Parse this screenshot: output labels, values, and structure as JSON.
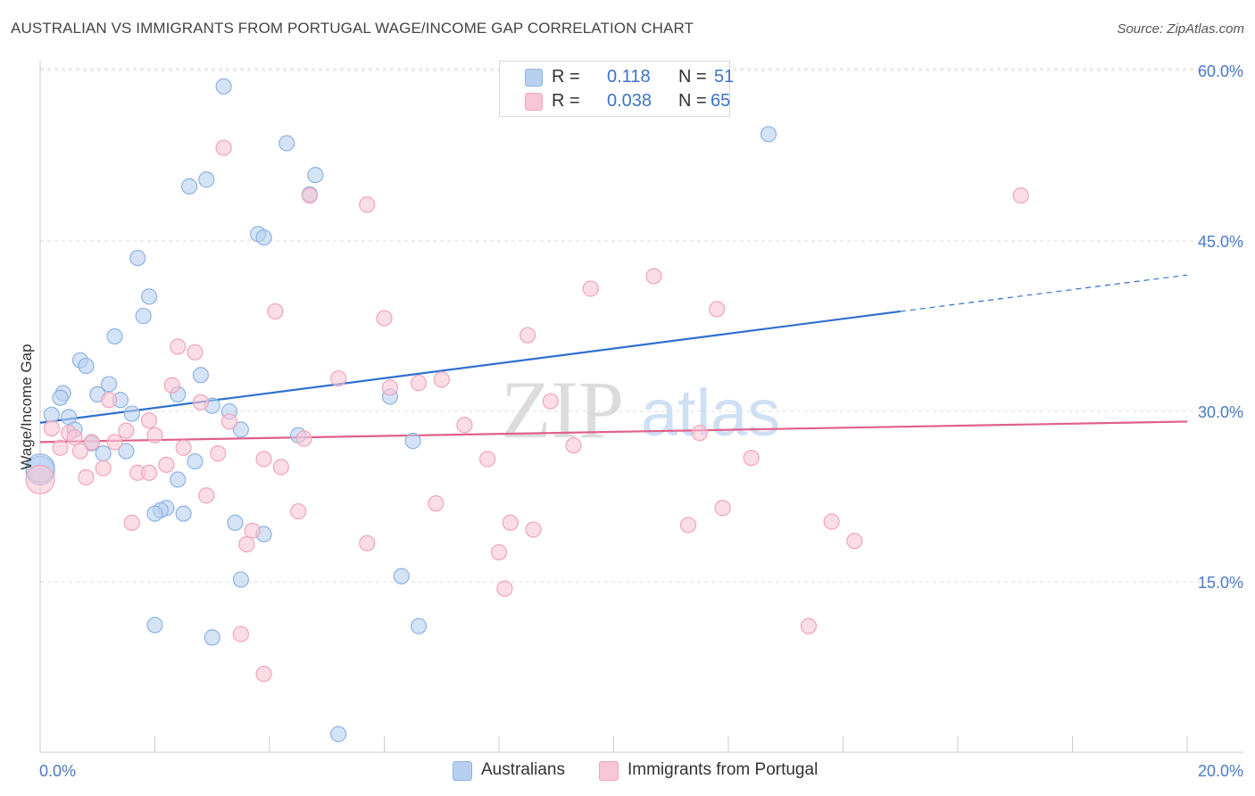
{
  "title": "AUSTRALIAN VS IMMIGRANTS FROM PORTUGAL WAGE/INCOME GAP CORRELATION CHART",
  "source": "Source: ZipAtlas.com",
  "watermark": {
    "zip": "ZIP",
    "atlas": "atlas"
  },
  "legend": {
    "r_label": "R =",
    "n_label": "N =",
    "rows": [
      {
        "r": "0.118",
        "n": "51"
      },
      {
        "r": "0.038",
        "n": "65"
      }
    ]
  },
  "bottom_legend": [
    "Australians",
    "Immigrants from Portugal"
  ],
  "colors": {
    "blue_fill": "#b8d0f0",
    "blue_stroke": "#8fb2e3",
    "blue_line": "#2f6fd0",
    "pink_fill": "#f8c6d6",
    "pink_stroke": "#f0a4bd",
    "pink_line": "#e0608a",
    "tick_text": "#4a7ac7",
    "grid": "#dddddd"
  },
  "chart_data": {
    "type": "scatter",
    "title": "AUSTRALIAN VS IMMIGRANTS FROM PORTUGAL WAGE/INCOME GAP CORRELATION CHART",
    "xlabel": "",
    "ylabel": "Wage/Income Gap",
    "xlim": [
      0,
      20
    ],
    "ylim": [
      0,
      62
    ],
    "x_tick_labels": [
      "0.0%",
      "20.0%"
    ],
    "y_ticks": [
      15,
      30,
      45,
      60
    ],
    "y_tick_labels": [
      "15.0%",
      "30.0%",
      "45.0%",
      "60.0%"
    ],
    "grid": true,
    "legend_position": "top-center",
    "series": [
      {
        "name": "Australians",
        "r": 0.118,
        "n": 51,
        "trend": {
          "x0": 0,
          "y0": 29.0,
          "x1": 15.0,
          "y1": 38.8,
          "dashed_to_x": 20,
          "dashed_to_y": 42.0
        },
        "points": [
          {
            "x": 3.2,
            "y": 58.6
          },
          {
            "x": 12.7,
            "y": 54.4
          },
          {
            "x": 4.3,
            "y": 53.6
          },
          {
            "x": 4.8,
            "y": 50.8
          },
          {
            "x": 2.9,
            "y": 50.4
          },
          {
            "x": 2.6,
            "y": 49.8
          },
          {
            "x": 4.7,
            "y": 49.1
          },
          {
            "x": 3.8,
            "y": 45.6
          },
          {
            "x": 3.9,
            "y": 45.3
          },
          {
            "x": 1.7,
            "y": 43.5
          },
          {
            "x": 1.9,
            "y": 40.1
          },
          {
            "x": 1.8,
            "y": 38.4
          },
          {
            "x": 1.3,
            "y": 36.6
          },
          {
            "x": 0.7,
            "y": 34.5
          },
          {
            "x": 0.8,
            "y": 34.0
          },
          {
            "x": 2.8,
            "y": 33.2
          },
          {
            "x": 1.2,
            "y": 32.4
          },
          {
            "x": 0.4,
            "y": 31.6
          },
          {
            "x": 1.0,
            "y": 31.5
          },
          {
            "x": 2.4,
            "y": 31.5
          },
          {
            "x": 0.35,
            "y": 31.2
          },
          {
            "x": 1.4,
            "y": 31.0
          },
          {
            "x": 6.1,
            "y": 31.3
          },
          {
            "x": 3.0,
            "y": 30.5
          },
          {
            "x": 1.6,
            "y": 29.8
          },
          {
            "x": 0.2,
            "y": 29.7
          },
          {
            "x": 0.5,
            "y": 29.5
          },
          {
            "x": 0.6,
            "y": 28.4
          },
          {
            "x": 3.5,
            "y": 28.4
          },
          {
            "x": 4.5,
            "y": 27.9
          },
          {
            "x": 6.5,
            "y": 27.4
          },
          {
            "x": 0.9,
            "y": 27.2
          },
          {
            "x": 1.5,
            "y": 26.5
          },
          {
            "x": 1.1,
            "y": 26.3
          },
          {
            "x": 2.7,
            "y": 25.6
          },
          {
            "x": 0.0,
            "y": 24.8
          },
          {
            "x": 2.4,
            "y": 24.0
          },
          {
            "x": 2.2,
            "y": 21.5
          },
          {
            "x": 2.1,
            "y": 21.3
          },
          {
            "x": 2.0,
            "y": 21.0
          },
          {
            "x": 2.5,
            "y": 21.0
          },
          {
            "x": 3.4,
            "y": 20.2
          },
          {
            "x": 3.9,
            "y": 19.2
          },
          {
            "x": 3.5,
            "y": 15.2
          },
          {
            "x": 6.3,
            "y": 15.5
          },
          {
            "x": 2.0,
            "y": 11.2
          },
          {
            "x": 6.6,
            "y": 11.1
          },
          {
            "x": 3.0,
            "y": 10.1
          },
          {
            "x": 5.2,
            "y": 1.6
          },
          {
            "x": 0.0,
            "y": 25.0
          },
          {
            "x": 3.3,
            "y": 30.0
          }
        ]
      },
      {
        "name": "Immigrants from Portugal",
        "r": 0.038,
        "n": 65,
        "trend": {
          "x0": 0,
          "y0": 27.3,
          "x1": 20,
          "y1": 29.1
        },
        "points": [
          {
            "x": 3.2,
            "y": 53.2
          },
          {
            "x": 17.1,
            "y": 49.0
          },
          {
            "x": 4.7,
            "y": 49.0
          },
          {
            "x": 5.7,
            "y": 48.2
          },
          {
            "x": 10.7,
            "y": 41.9
          },
          {
            "x": 9.6,
            "y": 40.8
          },
          {
            "x": 11.8,
            "y": 39.0
          },
          {
            "x": 4.1,
            "y": 38.8
          },
          {
            "x": 6.0,
            "y": 38.2
          },
          {
            "x": 8.5,
            "y": 36.7
          },
          {
            "x": 2.4,
            "y": 35.7
          },
          {
            "x": 2.7,
            "y": 35.2
          },
          {
            "x": 5.2,
            "y": 32.9
          },
          {
            "x": 7.0,
            "y": 32.8
          },
          {
            "x": 6.6,
            "y": 32.5
          },
          {
            "x": 2.3,
            "y": 32.3
          },
          {
            "x": 6.1,
            "y": 32.1
          },
          {
            "x": 2.8,
            "y": 30.8
          },
          {
            "x": 1.2,
            "y": 31.0
          },
          {
            "x": 8.9,
            "y": 30.9
          },
          {
            "x": 1.9,
            "y": 29.2
          },
          {
            "x": 3.3,
            "y": 29.1
          },
          {
            "x": 7.4,
            "y": 28.8
          },
          {
            "x": 0.2,
            "y": 28.5
          },
          {
            "x": 1.5,
            "y": 28.3
          },
          {
            "x": 0.5,
            "y": 28.1
          },
          {
            "x": 2.0,
            "y": 27.9
          },
          {
            "x": 11.5,
            "y": 28.1
          },
          {
            "x": 0.6,
            "y": 27.7
          },
          {
            "x": 4.6,
            "y": 27.6
          },
          {
            "x": 0.9,
            "y": 27.3
          },
          {
            "x": 1.3,
            "y": 27.3
          },
          {
            "x": 9.3,
            "y": 27.0
          },
          {
            "x": 0.35,
            "y": 26.8
          },
          {
            "x": 2.5,
            "y": 26.8
          },
          {
            "x": 0.7,
            "y": 26.5
          },
          {
            "x": 3.1,
            "y": 26.3
          },
          {
            "x": 12.4,
            "y": 25.9
          },
          {
            "x": 3.9,
            "y": 25.8
          },
          {
            "x": 7.8,
            "y": 25.8
          },
          {
            "x": 2.2,
            "y": 25.3
          },
          {
            "x": 4.2,
            "y": 25.1
          },
          {
            "x": 1.1,
            "y": 25.0
          },
          {
            "x": 1.7,
            "y": 24.6
          },
          {
            "x": 1.9,
            "y": 24.6
          },
          {
            "x": 0.8,
            "y": 24.2
          },
          {
            "x": 0.0,
            "y": 24.0
          },
          {
            "x": 2.9,
            "y": 22.6
          },
          {
            "x": 6.9,
            "y": 21.9
          },
          {
            "x": 11.9,
            "y": 21.5
          },
          {
            "x": 4.5,
            "y": 21.2
          },
          {
            "x": 1.6,
            "y": 20.2
          },
          {
            "x": 8.2,
            "y": 20.2
          },
          {
            "x": 13.8,
            "y": 20.3
          },
          {
            "x": 11.3,
            "y": 20.0
          },
          {
            "x": 8.6,
            "y": 19.6
          },
          {
            "x": 3.7,
            "y": 19.5
          },
          {
            "x": 14.2,
            "y": 18.6
          },
          {
            "x": 3.6,
            "y": 18.3
          },
          {
            "x": 5.7,
            "y": 18.4
          },
          {
            "x": 8.0,
            "y": 17.6
          },
          {
            "x": 8.1,
            "y": 14.4
          },
          {
            "x": 13.4,
            "y": 11.1
          },
          {
            "x": 3.5,
            "y": 10.4
          },
          {
            "x": 3.9,
            "y": 6.9
          }
        ]
      }
    ]
  }
}
